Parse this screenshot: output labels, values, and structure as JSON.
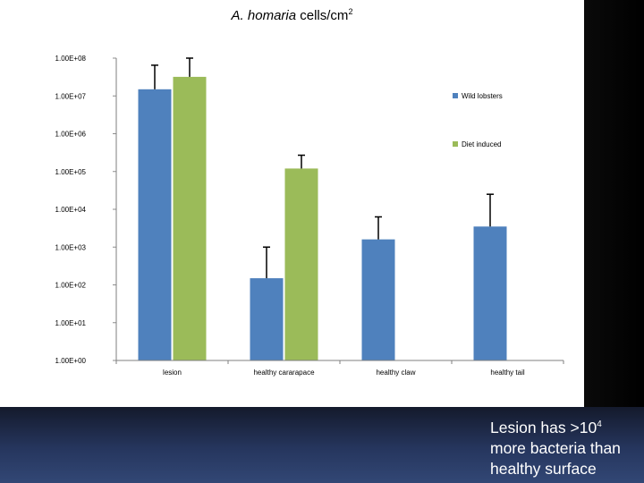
{
  "colors": {
    "wild": "#4f81bd",
    "diet": "#9bbb59",
    "axis": "#7f7f7f",
    "gridline": "#8c8c8c"
  },
  "caption": {
    "line1_pre": "Lesion has >10",
    "line1_sup": "4",
    "line2": "more bacteria than",
    "line3": "healthy surface"
  },
  "chart_data": {
    "type": "bar",
    "title_italic": "A. homaria",
    "title_rest": " cells/cm",
    "title_sup": "2",
    "scale": "log10",
    "ylim": [
      1,
      100000000
    ],
    "ytick_labels": [
      "1.00E+08",
      "1.00E+07",
      "1.00E+06",
      "1.00E+05",
      "1.00E+04",
      "1.00E+03",
      "1.00E+02",
      "1.00E+01",
      "1.00E+00"
    ],
    "categories": [
      "lesion",
      "healthy cararapace",
      "healthy claw",
      "healthy tail"
    ],
    "series": [
      {
        "name": "Wild lobsters",
        "values": [
          15000000,
          150,
          1600,
          3500
        ],
        "error_upper": [
          65000000,
          1000,
          6300,
          25000
        ]
      },
      {
        "name": "Diet induced",
        "values": [
          32000000,
          120000,
          null,
          null
        ],
        "error_upper": [
          100000000,
          270000,
          null,
          null
        ]
      }
    ]
  }
}
